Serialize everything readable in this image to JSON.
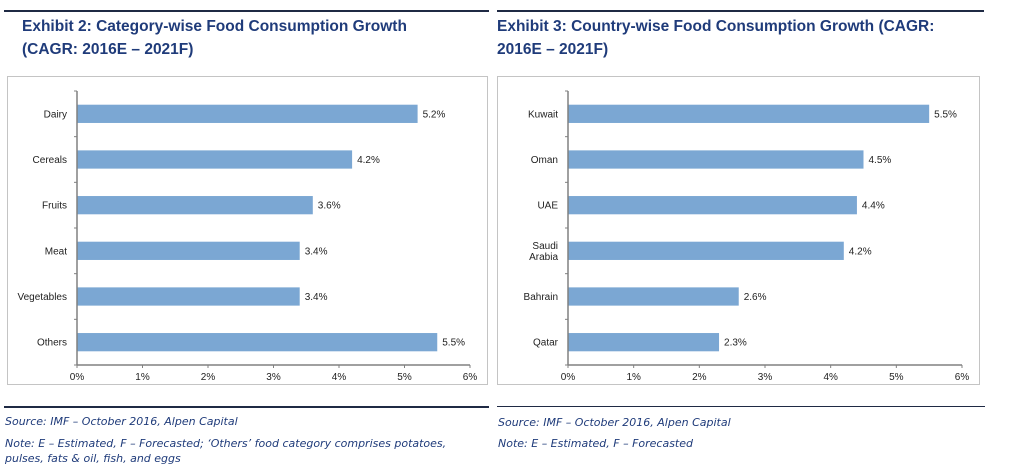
{
  "chart_data": [
    {
      "type": "bar",
      "orientation": "horizontal",
      "title": "Exhibit 2: Category-wise Food Consumption Growth (CAGR: 2016E – 2021F)",
      "title_lines": [
        "Exhibit 2: Category-wise Food Consumption Growth",
        "(CAGR: 2016E – 2021F)"
      ],
      "categories": [
        "Dairy",
        "Cereals",
        "Fruits",
        "Meat",
        "Vegetables",
        "Others"
      ],
      "category_lines": [
        [
          "Dairy"
        ],
        [
          "Cereals"
        ],
        [
          "Fruits"
        ],
        [
          "Meat"
        ],
        [
          "Vegetables"
        ],
        [
          "Others"
        ]
      ],
      "values": [
        5.2,
        4.2,
        3.6,
        3.4,
        3.4,
        5.5
      ],
      "data_labels": [
        "5.2%",
        "4.2%",
        "3.6%",
        "3.4%",
        "3.4%",
        "5.5%"
      ],
      "xlabel": "",
      "ylabel": "",
      "xlim": [
        0,
        6
      ],
      "x_ticks": [
        0,
        1,
        2,
        3,
        4,
        5,
        6
      ],
      "x_tick_labels": [
        "0%",
        "1%",
        "2%",
        "3%",
        "4%",
        "5%",
        "6%"
      ],
      "grid": false,
      "legend": "none",
      "bar_color": "#7ba7d3",
      "source": "Source:  IMF – October 2016, Alpen Capital",
      "note": "Note: E – Estimated, F – Forecasted; ‘Others’ food category comprises potatoes, pulses, fats & oil, fish, and eggs"
    },
    {
      "type": "bar",
      "orientation": "horizontal",
      "title": "Exhibit 3: Country-wise Food Consumption Growth (CAGR: 2016E – 2021F)",
      "title_lines": [
        "Exhibit 3: Country-wise Food Consumption Growth (CAGR:",
        "2016E – 2021F)"
      ],
      "categories": [
        "Kuwait",
        "Oman",
        "UAE",
        "Saudi Arabia",
        "Bahrain",
        "Qatar"
      ],
      "category_lines": [
        [
          "Kuwait"
        ],
        [
          "Oman"
        ],
        [
          "UAE"
        ],
        [
          "Saudi",
          "Arabia"
        ],
        [
          "Bahrain"
        ],
        [
          "Qatar"
        ]
      ],
      "values": [
        5.5,
        4.5,
        4.4,
        4.2,
        2.6,
        2.3
      ],
      "data_labels": [
        "5.5%",
        "4.5%",
        "4.4%",
        "4.2%",
        "2.6%",
        "2.3%"
      ],
      "xlabel": "",
      "ylabel": "",
      "xlim": [
        0,
        6
      ],
      "x_ticks": [
        0,
        1,
        2,
        3,
        4,
        5,
        6
      ],
      "x_tick_labels": [
        "0%",
        "1%",
        "2%",
        "3%",
        "4%",
        "5%",
        "6%"
      ],
      "grid": false,
      "legend": "none",
      "bar_color": "#7ba7d3",
      "source": "Source:  IMF – October 2016, Alpen Capital",
      "note": "Note: E – Estimated, F – Forecasted"
    }
  ],
  "colors": {
    "title": "#1f3b7a",
    "rule": "#1f2a44",
    "axis": "#808080",
    "bar": "#7ba7d3"
  }
}
